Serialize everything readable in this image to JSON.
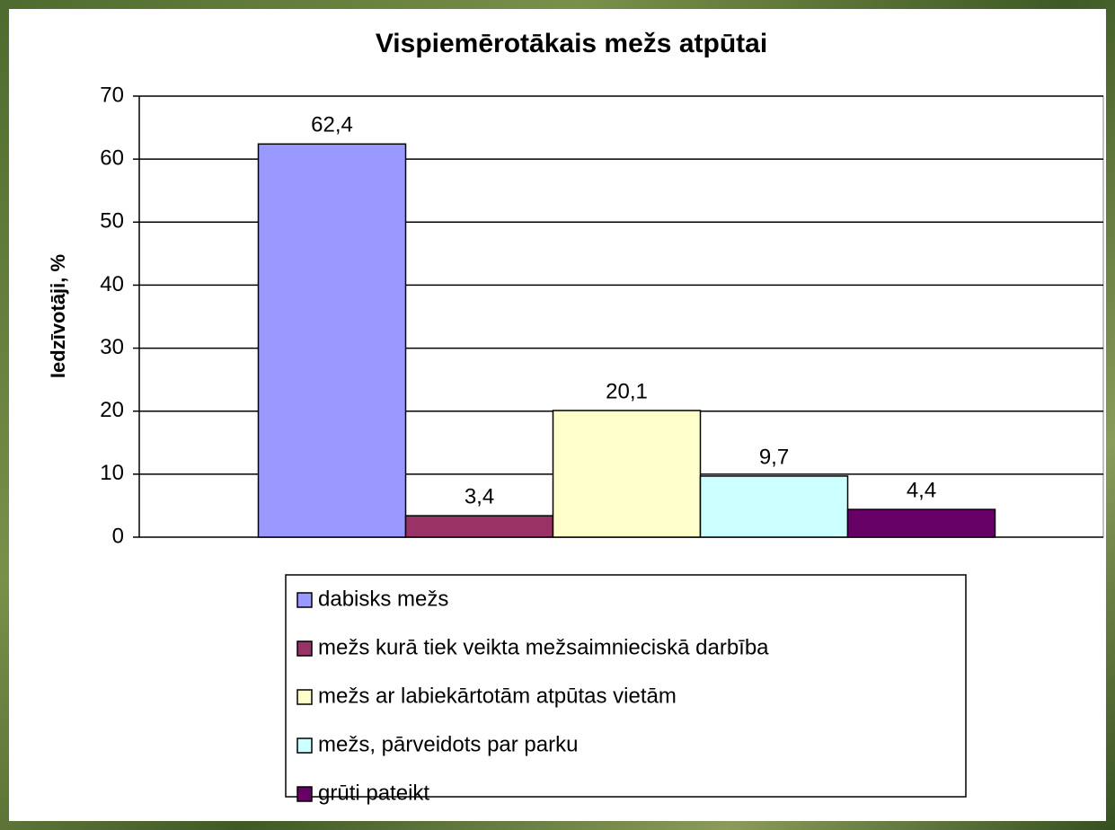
{
  "chart_data": {
    "type": "bar",
    "title": "Vispiemērotākais mežs atpūtai",
    "y_label": "Iedzīvotāji, %",
    "categories": [
      null
    ],
    "series": [
      {
        "name": "dabisks mežs",
        "color": "#9999ff",
        "values": [
          62.4
        ],
        "value_labels": [
          "62,4"
        ]
      },
      {
        "name": "mežs kurā tiek veikta mežsaimnieciskā darbība",
        "color": "#993366",
        "values": [
          3.4
        ],
        "value_labels": [
          "3,4"
        ]
      },
      {
        "name": "mežs ar labiekārtotām atpūtas vietām",
        "color": "#ffffcc",
        "values": [
          20.1
        ],
        "value_labels": [
          "20,1"
        ]
      },
      {
        "name": "mežs, pārveidots par parku",
        "color": "#ccffff",
        "values": [
          9.7
        ],
        "value_labels": [
          "9,7"
        ]
      },
      {
        "name": "grūti pateikt",
        "color": "#660066",
        "values": [
          4.4
        ],
        "value_labels": [
          "4,4"
        ]
      }
    ],
    "ylim": [
      0,
      70
    ],
    "yticks": [
      0,
      10,
      20,
      30,
      40,
      50,
      60,
      70
    ],
    "grid": true,
    "legend": "bottom"
  }
}
